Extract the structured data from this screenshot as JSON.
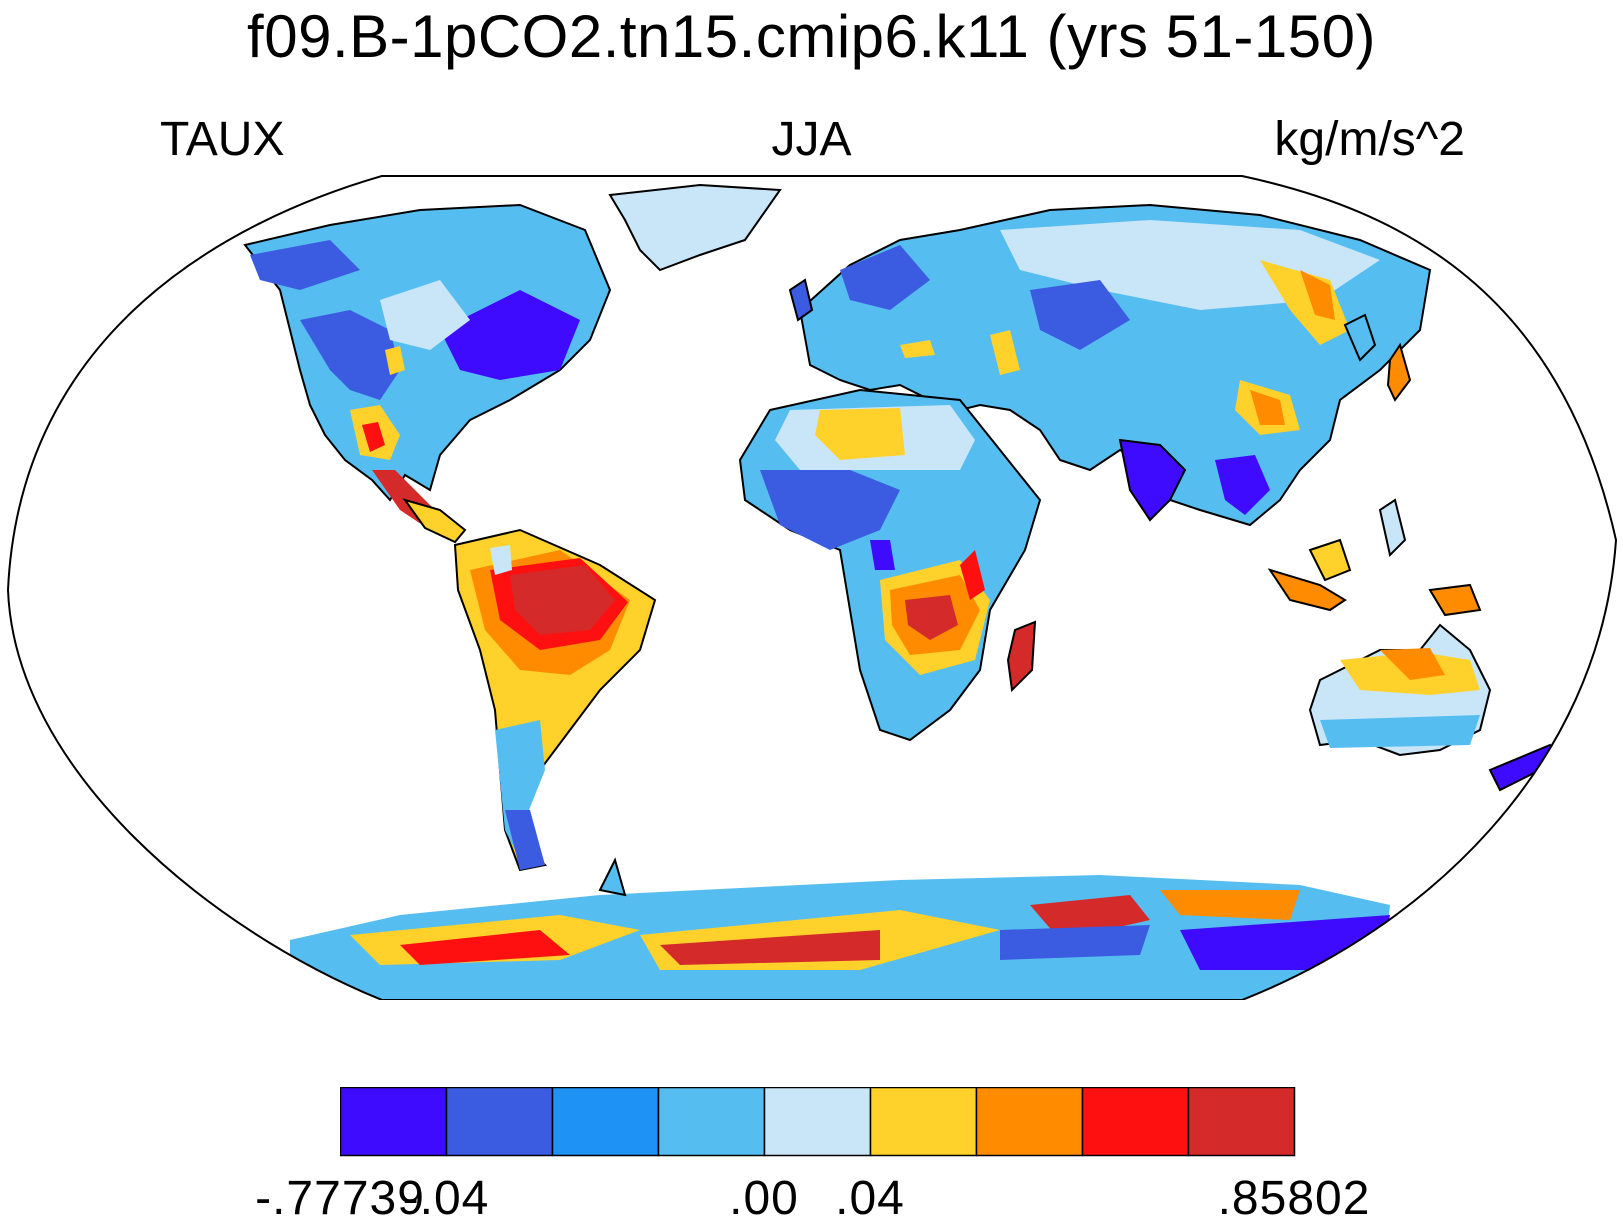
{
  "title": "f09.B-1pCO2.tn15.cmip6.k11 (yrs 51-150)",
  "subtitle_left": "TAUX",
  "subtitle_center": "JJA",
  "subtitle_right": "kg/m/s^2",
  "colorbar": {
    "colors": [
      "#3f0bff",
      "#3b5ce0",
      "#1f93f5",
      "#56bdf0",
      "#c8e6f8",
      "#ffd12a",
      "#ff8c00",
      "#ff1010",
      "#d52a2a"
    ],
    "tick_labels": [
      "-.77739",
      "-.04",
      ".00",
      ".04",
      ".85802"
    ]
  },
  "map": {
    "projection": "Robinson",
    "ocean_color": "#ffffff",
    "coastline_color": "#000000"
  }
}
